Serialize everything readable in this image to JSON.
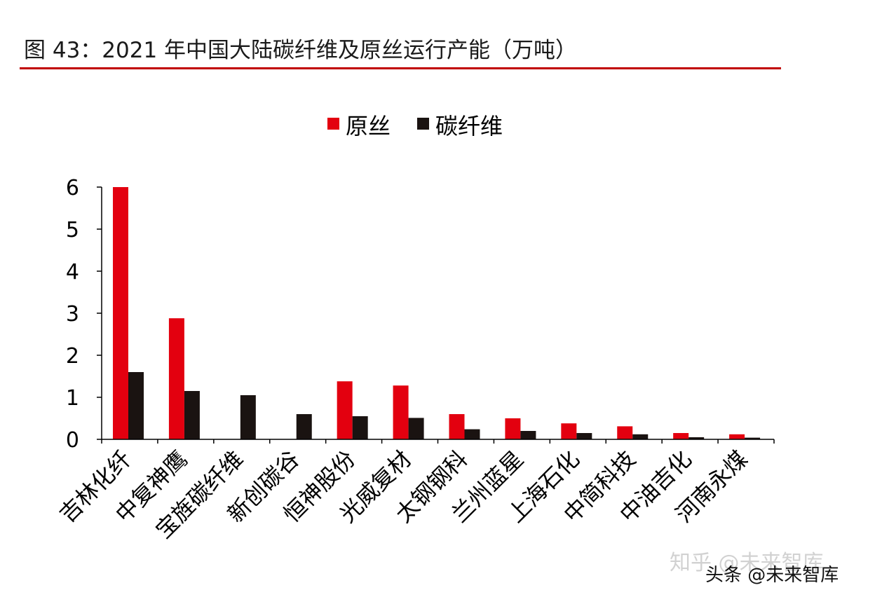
{
  "figure": {
    "title": "图 43：2021 年中国大陆碳纤维及原丝运行产能（万吨）"
  },
  "watermarks": {
    "zhihu": "知乎 @未来智库",
    "toutiao": "头条 @未来智库"
  },
  "colors": {
    "accent_rule": "#c00000"
  },
  "chart_data": {
    "type": "bar",
    "categories": [
      "吉林化纤",
      "中复神鹰",
      "宝旌碳纤维",
      "新创碳谷",
      "恒神股份",
      "光威复材",
      "太钢钢科",
      "兰州蓝星",
      "上海石化",
      "中简科技",
      "中油吉化",
      "河南永煤"
    ],
    "series": [
      {
        "name": "原丝",
        "color": "#e3000f",
        "values": [
          6.0,
          2.88,
          0,
          0,
          1.38,
          1.28,
          0.6,
          0.5,
          0.38,
          0.31,
          0.15,
          0.12
        ]
      },
      {
        "name": "碳纤维",
        "color": "#1a1311",
        "values": [
          1.6,
          1.15,
          1.05,
          0.6,
          0.55,
          0.51,
          0.24,
          0.2,
          0.15,
          0.12,
          0.05,
          0.04
        ]
      }
    ],
    "y_ticks": [
      "0",
      "1",
      "2",
      "3",
      "4",
      "5",
      "6"
    ],
    "ylim": [
      0,
      6
    ],
    "xlabel": "",
    "ylabel": "",
    "grid": false,
    "legend_position": "top-center"
  }
}
